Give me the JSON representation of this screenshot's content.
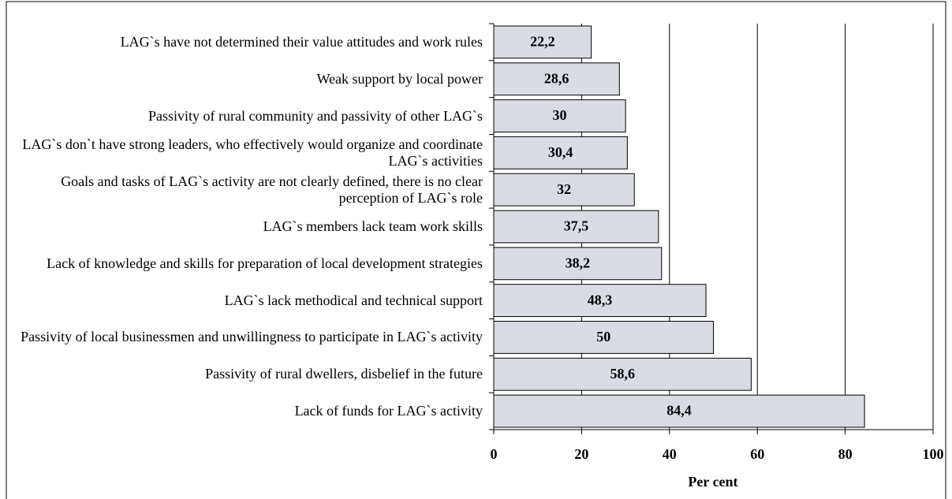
{
  "chart_data": {
    "type": "barh",
    "categories": [
      "LAG`s have not determined their value attitudes and work rules",
      "Weak support by local power",
      "Passivity of rural community and passivity of other LAG`s",
      "LAG`s don`t have strong leaders, who effectively would organize and coordinate LAG`s activities",
      "Goals and tasks of LAG`s activity are not clearly defined, there is no clear perception of LAG`s role",
      "LAG`s members lack team work skills",
      "Lack of knowledge and skills for preparation of local development strategies",
      "LAG`s lack methodical and technical support",
      "Passivity of local businessmen and unwillingness to participate in LAG`s activity",
      "Passivity of rural dwellers, disbelief in the future",
      "Lack of funds for LAG`s activity"
    ],
    "values": [
      22.2,
      28.6,
      30,
      30.4,
      32,
      37.5,
      38.2,
      48.3,
      50,
      58.6,
      84.4
    ],
    "value_labels": [
      "22,2",
      "28,6",
      "30",
      "30,4",
      "32",
      "37,5",
      "38,2",
      "48,3",
      "50",
      "58,6",
      "84,4"
    ],
    "color": "#d9dce3",
    "xlabel": "Per cent",
    "xlim": [
      0,
      100
    ],
    "xticks": [
      0,
      20,
      40,
      60,
      80,
      100
    ],
    "grid": true
  }
}
